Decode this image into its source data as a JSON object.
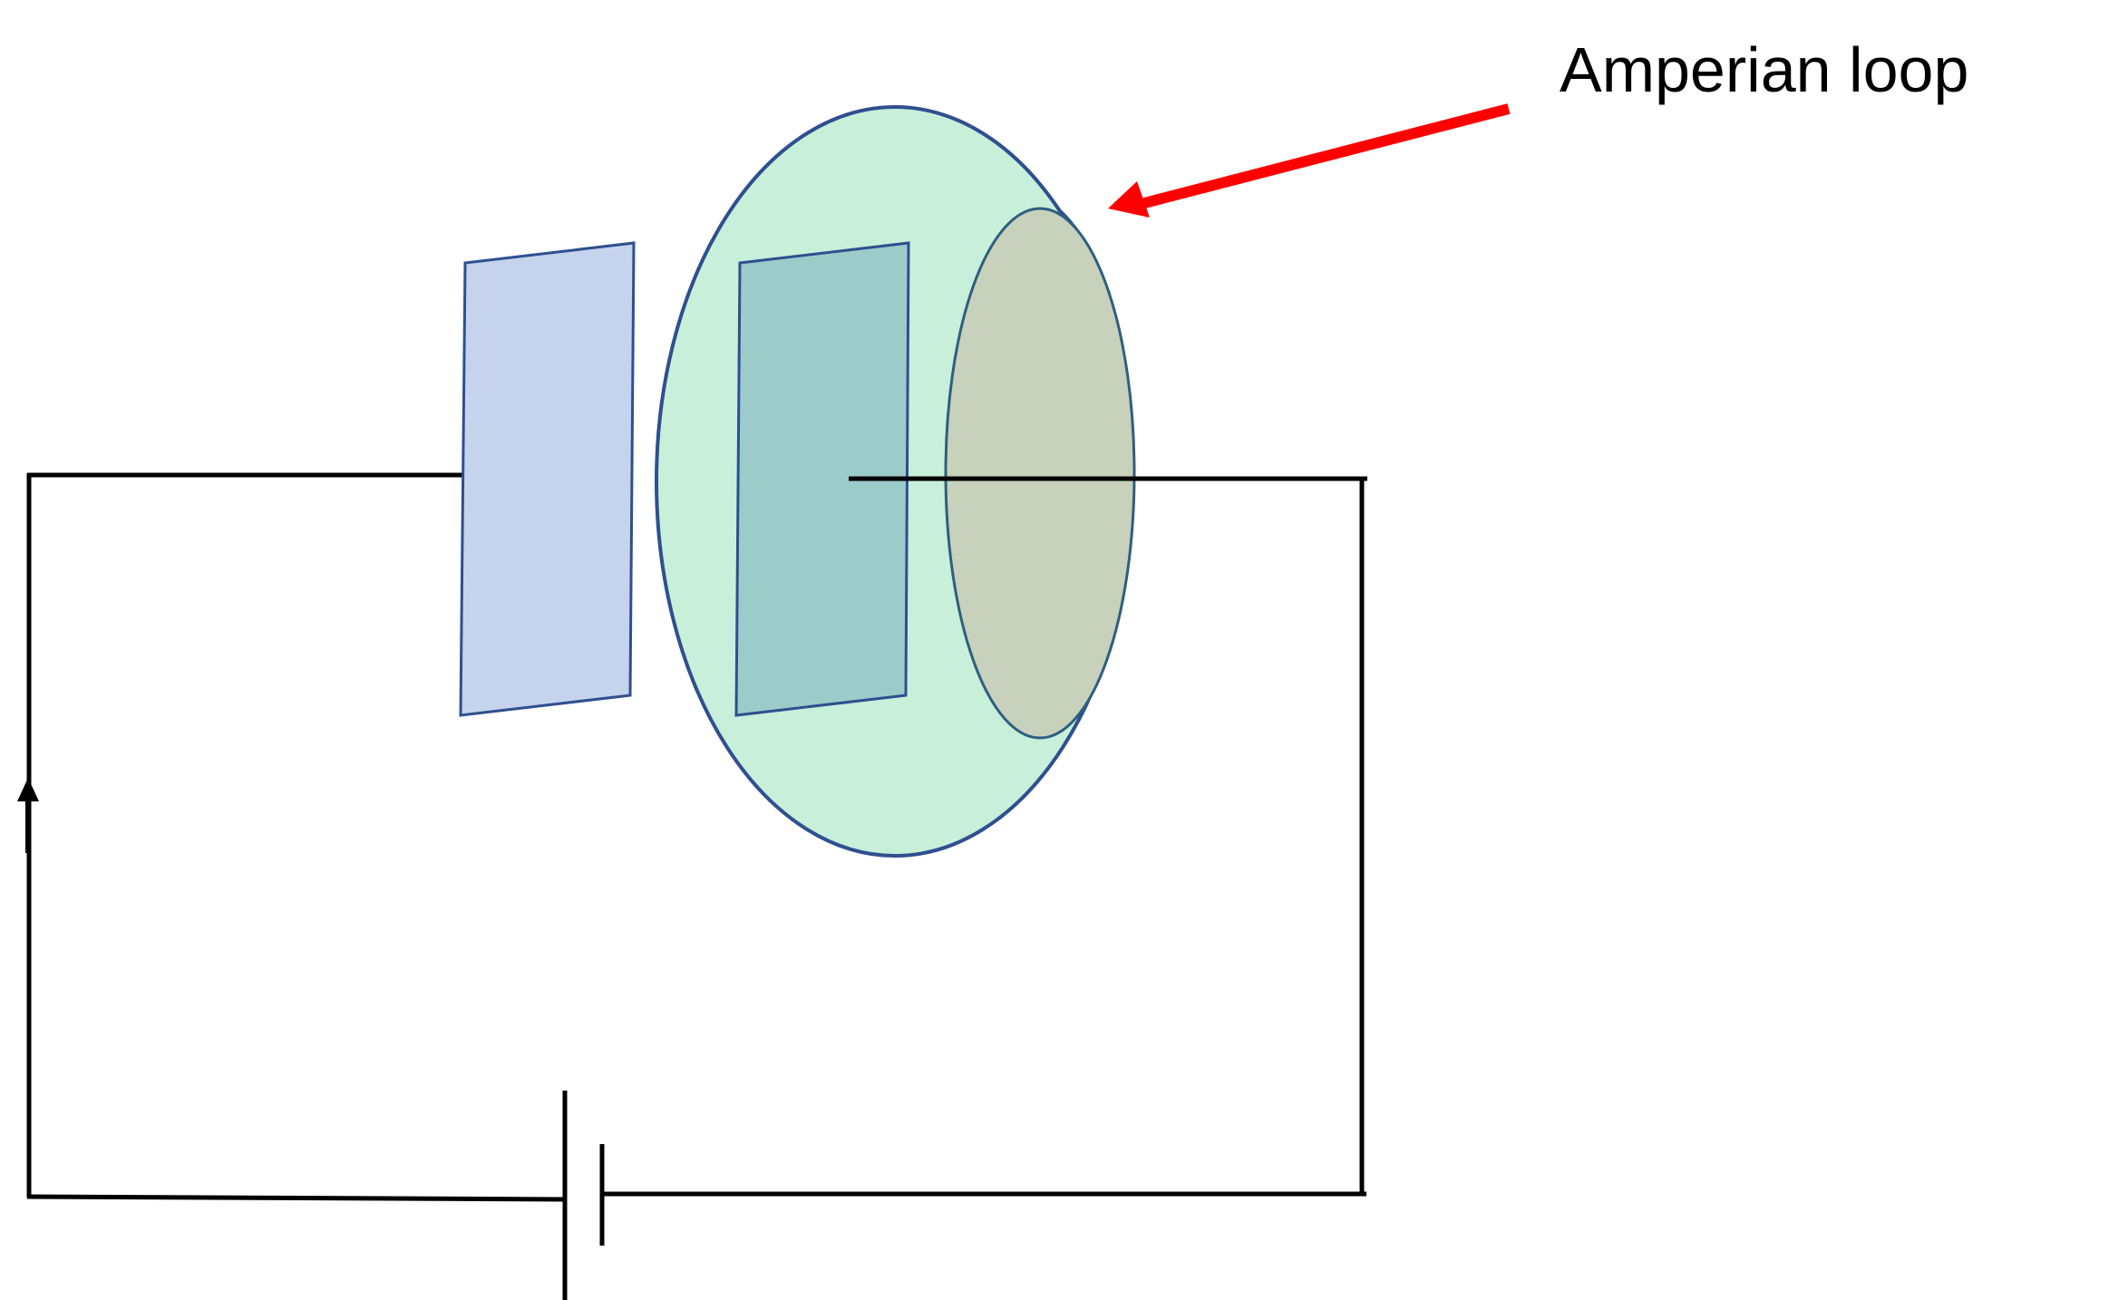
{
  "annotation": {
    "label": "Amperian loop"
  },
  "colors": {
    "wire": "#000000",
    "arrow": "#ff0000",
    "plate_fill_left": "#c5d3ec",
    "plate_fill_right": "#9bccca",
    "plate_stroke": "#2f4f8f",
    "bulge_surface_fill": "#c8efd9",
    "bulge_surface_stroke": "#2f4f8f",
    "flat_surface_fill": "#c8d1bc",
    "flat_surface_stroke": "#2e5f7f"
  },
  "icons": {
    "current_direction": "up-arrow-icon",
    "battery": "battery-icon"
  }
}
